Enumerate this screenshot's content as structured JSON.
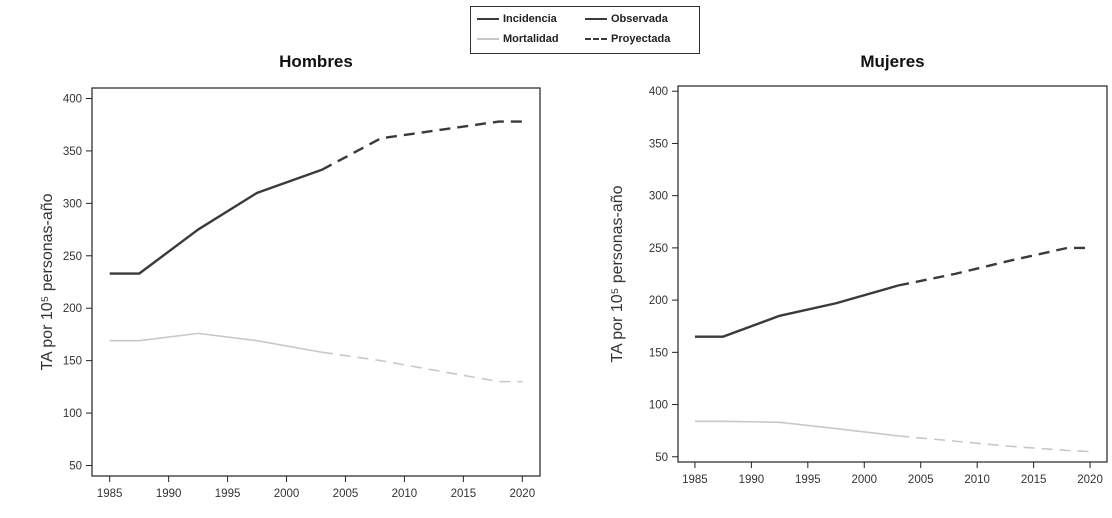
{
  "legend": {
    "items": [
      {
        "label": "Incidencia",
        "color": "#3a3a3a",
        "style": "solid"
      },
      {
        "label": "Observada",
        "color": "#3a3a3a",
        "style": "solid"
      },
      {
        "label": "Mortalidad",
        "color": "#c8c8c8",
        "style": "solid"
      },
      {
        "label": "Proyectada",
        "color": "#3a3a3a",
        "style": "dashed"
      }
    ]
  },
  "chart_data": [
    {
      "type": "line",
      "title": "Hombres",
      "xlabel": "",
      "ylabel": "TA por 10⁵ personas-año",
      "xlim": [
        1983.5,
        2021.5
      ],
      "ylim": [
        40,
        410
      ],
      "xticks": [
        1985,
        1990,
        1995,
        2000,
        2005,
        2010,
        2015,
        2020
      ],
      "yticks": [
        50,
        100,
        150,
        200,
        250,
        300,
        350,
        400
      ],
      "grid": false,
      "series": [
        {
          "name": "Incidencia",
          "color": "#3a3a3a",
          "observed": {
            "x": [
              1985,
              1987.5,
              1992.5,
              1997.5,
              2003
            ],
            "y": [
              233,
              233,
              275,
              310,
              332
            ]
          },
          "projected": {
            "x": [
              2003,
              2008,
              2013,
              2018,
              2020
            ],
            "y": [
              332,
              362,
              370,
              378,
              378
            ]
          }
        },
        {
          "name": "Mortalidad",
          "color": "#c8c8c8",
          "observed": {
            "x": [
              1985,
              1987.5,
              1992.5,
              1997.5,
              2003
            ],
            "y": [
              169,
              169,
              176,
              169,
              158
            ]
          },
          "projected": {
            "x": [
              2003,
              2008,
              2013,
              2018,
              2020
            ],
            "y": [
              158,
              150,
              140,
              130,
              130
            ]
          }
        }
      ]
    },
    {
      "type": "line",
      "title": "Mujeres",
      "xlabel": "",
      "ylabel": "TA por 10⁵ personas-año",
      "xlim": [
        1983.5,
        2021.5
      ],
      "ylim": [
        45,
        405
      ],
      "xticks": [
        1985,
        1990,
        1995,
        2000,
        2005,
        2010,
        2015,
        2020
      ],
      "yticks": [
        50,
        100,
        150,
        200,
        250,
        300,
        350,
        400
      ],
      "grid": false,
      "series": [
        {
          "name": "Incidencia",
          "color": "#3a3a3a",
          "observed": {
            "x": [
              1985,
              1987.5,
              1992.5,
              1997.5,
              2003
            ],
            "y": [
              165,
              165,
              185,
              197,
              214
            ]
          },
          "projected": {
            "x": [
              2003,
              2008,
              2013,
              2018,
              2020
            ],
            "y": [
              214,
              225,
              238,
              250,
              250
            ]
          }
        },
        {
          "name": "Mortalidad",
          "color": "#c8c8c8",
          "observed": {
            "x": [
              1985,
              1987.5,
              1992.5,
              1997.5,
              2003
            ],
            "y": [
              84,
              84,
              83,
              77,
              70
            ]
          },
          "projected": {
            "x": [
              2003,
              2008,
              2013,
              2018,
              2020
            ],
            "y": [
              70,
              65,
              60,
              56,
              55
            ]
          }
        }
      ]
    }
  ]
}
